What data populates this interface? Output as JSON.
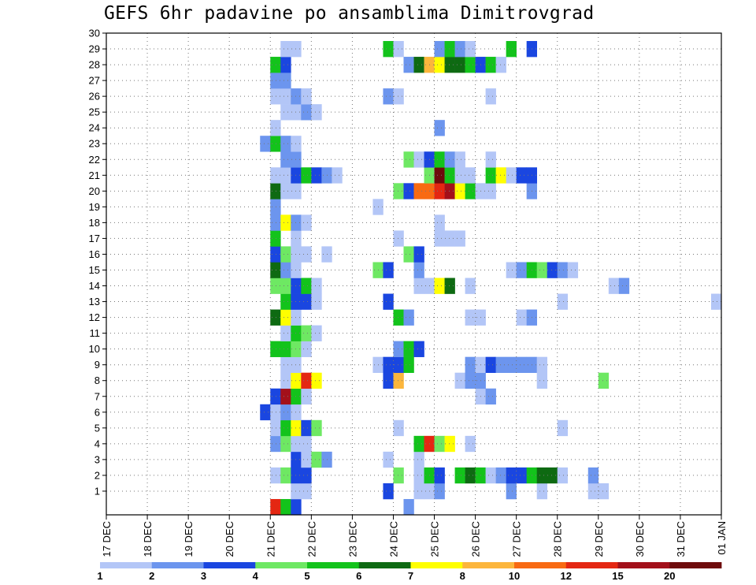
{
  "chart_data": {
    "type": "heatmap",
    "title": "GEFS 6hr padavine po ansamblima Dimitrovgrad",
    "x_tick_labels": [
      "17 DEC",
      "18 DEC",
      "19 DEC",
      "20 DEC",
      "21 DEC",
      "22 DEC",
      "23 DEC",
      "24 DEC",
      "25 DEC",
      "26 DEC",
      "27 DEC",
      "28 DEC",
      "29 DEC",
      "30 DEC",
      "31 DEC",
      "01 JAN"
    ],
    "y_tick_labels": [
      "1",
      "2",
      "3",
      "4",
      "5",
      "6",
      "7",
      "8",
      "9",
      "10",
      "11",
      "12",
      "13",
      "14",
      "15",
      "16",
      "17",
      "18",
      "19",
      "20",
      "21",
      "22",
      "23",
      "24",
      "25",
      "26",
      "27",
      "28",
      "29",
      "30"
    ],
    "x_range_days": [
      0,
      15
    ],
    "y_range": [
      0,
      30
    ],
    "grid": "dotted",
    "colorbar": {
      "labels": [
        "1",
        "2",
        "3",
        "4",
        "5",
        "6",
        "7",
        "8",
        "10",
        "12",
        "15",
        "20"
      ],
      "colors": [
        "#b3c6f7",
        "#6c95ee",
        "#1a46e0",
        "#6ee863",
        "#13c31b",
        "#0e6a12",
        "#ffff00",
        "#fcb63c",
        "#f86a12",
        "#e42712",
        "#a3101a",
        "#6e0b0c"
      ]
    },
    "cells_note": "x = day offset from 17 DEC (step 0.25 = 6h), y = ensemble member (0 = control), c = color class index 0-11",
    "cells": [
      {
        "x": 4.0,
        "y": 0,
        "c": 9
      },
      {
        "x": 4.25,
        "y": 0,
        "c": 4
      },
      {
        "x": 4.5,
        "y": 0,
        "c": 2
      },
      {
        "x": 7.25,
        "y": 0,
        "c": 1
      },
      {
        "x": 4.5,
        "y": 1,
        "c": 0
      },
      {
        "x": 4.75,
        "y": 1,
        "c": 0
      },
      {
        "x": 6.75,
        "y": 1,
        "c": 2
      },
      {
        "x": 7.5,
        "y": 1,
        "c": 0
      },
      {
        "x": 7.75,
        "y": 1,
        "c": 0
      },
      {
        "x": 8.0,
        "y": 1,
        "c": 1
      },
      {
        "x": 9.75,
        "y": 1,
        "c": 1
      },
      {
        "x": 10.5,
        "y": 1,
        "c": 0
      },
      {
        "x": 11.75,
        "y": 1,
        "c": 0
      },
      {
        "x": 12.0,
        "y": 1,
        "c": 0
      },
      {
        "x": 4.0,
        "y": 2,
        "c": 0
      },
      {
        "x": 4.25,
        "y": 2,
        "c": 3
      },
      {
        "x": 4.5,
        "y": 2,
        "c": 2
      },
      {
        "x": 4.75,
        "y": 2,
        "c": 2
      },
      {
        "x": 7.0,
        "y": 2,
        "c": 3
      },
      {
        "x": 7.5,
        "y": 2,
        "c": 0
      },
      {
        "x": 7.75,
        "y": 2,
        "c": 4
      },
      {
        "x": 8.0,
        "y": 2,
        "c": 2
      },
      {
        "x": 8.5,
        "y": 2,
        "c": 4
      },
      {
        "x": 8.75,
        "y": 2,
        "c": 5
      },
      {
        "x": 9.0,
        "y": 2,
        "c": 4
      },
      {
        "x": 9.25,
        "y": 2,
        "c": 0
      },
      {
        "x": 9.5,
        "y": 2,
        "c": 1
      },
      {
        "x": 9.75,
        "y": 2,
        "c": 2
      },
      {
        "x": 10.0,
        "y": 2,
        "c": 2
      },
      {
        "x": 10.25,
        "y": 2,
        "c": 4
      },
      {
        "x": 10.5,
        "y": 2,
        "c": 5
      },
      {
        "x": 10.75,
        "y": 2,
        "c": 5
      },
      {
        "x": 11.0,
        "y": 2,
        "c": 0
      },
      {
        "x": 11.75,
        "y": 2,
        "c": 1
      },
      {
        "x": 4.5,
        "y": 3,
        "c": 2
      },
      {
        "x": 4.75,
        "y": 3,
        "c": 0
      },
      {
        "x": 5.0,
        "y": 3,
        "c": 3
      },
      {
        "x": 5.25,
        "y": 3,
        "c": 1
      },
      {
        "x": 6.75,
        "y": 3,
        "c": 0
      },
      {
        "x": 7.5,
        "y": 3,
        "c": 0
      },
      {
        "x": 4.0,
        "y": 4,
        "c": 1
      },
      {
        "x": 4.25,
        "y": 4,
        "c": 3
      },
      {
        "x": 4.5,
        "y": 4,
        "c": 0
      },
      {
        "x": 4.75,
        "y": 4,
        "c": 0
      },
      {
        "x": 7.5,
        "y": 4,
        "c": 4
      },
      {
        "x": 7.75,
        "y": 4,
        "c": 9
      },
      {
        "x": 8.0,
        "y": 4,
        "c": 3
      },
      {
        "x": 8.25,
        "y": 4,
        "c": 6
      },
      {
        "x": 8.75,
        "y": 4,
        "c": 0
      },
      {
        "x": 4.0,
        "y": 5,
        "c": 0
      },
      {
        "x": 4.25,
        "y": 5,
        "c": 4
      },
      {
        "x": 4.5,
        "y": 5,
        "c": 6
      },
      {
        "x": 4.75,
        "y": 5,
        "c": 2
      },
      {
        "x": 5.0,
        "y": 5,
        "c": 3
      },
      {
        "x": 7.0,
        "y": 5,
        "c": 0
      },
      {
        "x": 11.0,
        "y": 5,
        "c": 0
      },
      {
        "x": 3.75,
        "y": 6,
        "c": 2
      },
      {
        "x": 4.0,
        "y": 6,
        "c": 0
      },
      {
        "x": 4.25,
        "y": 6,
        "c": 1
      },
      {
        "x": 4.5,
        "y": 6,
        "c": 0
      },
      {
        "x": 4.0,
        "y": 7,
        "c": 2
      },
      {
        "x": 4.25,
        "y": 7,
        "c": 10
      },
      {
        "x": 4.5,
        "y": 7,
        "c": 4
      },
      {
        "x": 4.75,
        "y": 7,
        "c": 0
      },
      {
        "x": 9.0,
        "y": 7,
        "c": 0
      },
      {
        "x": 9.25,
        "y": 7,
        "c": 1
      },
      {
        "x": 4.25,
        "y": 8,
        "c": 0
      },
      {
        "x": 4.5,
        "y": 8,
        "c": 6
      },
      {
        "x": 4.75,
        "y": 8,
        "c": 9
      },
      {
        "x": 5.0,
        "y": 8,
        "c": 6
      },
      {
        "x": 6.75,
        "y": 8,
        "c": 2
      },
      {
        "x": 7.0,
        "y": 8,
        "c": 7
      },
      {
        "x": 8.5,
        "y": 8,
        "c": 0
      },
      {
        "x": 8.75,
        "y": 8,
        "c": 1
      },
      {
        "x": 9.0,
        "y": 8,
        "c": 1
      },
      {
        "x": 10.5,
        "y": 8,
        "c": 0
      },
      {
        "x": 12.0,
        "y": 8,
        "c": 3
      },
      {
        "x": 4.25,
        "y": 9,
        "c": 0
      },
      {
        "x": 4.5,
        "y": 9,
        "c": 0
      },
      {
        "x": 6.5,
        "y": 9,
        "c": 0
      },
      {
        "x": 6.75,
        "y": 9,
        "c": 2
      },
      {
        "x": 7.0,
        "y": 9,
        "c": 2
      },
      {
        "x": 7.25,
        "y": 9,
        "c": 4
      },
      {
        "x": 8.75,
        "y": 9,
        "c": 1
      },
      {
        "x": 9.0,
        "y": 9,
        "c": 0
      },
      {
        "x": 9.25,
        "y": 9,
        "c": 2
      },
      {
        "x": 9.5,
        "y": 9,
        "c": 1
      },
      {
        "x": 9.75,
        "y": 9,
        "c": 1
      },
      {
        "x": 10.0,
        "y": 9,
        "c": 1
      },
      {
        "x": 10.25,
        "y": 9,
        "c": 1
      },
      {
        "x": 10.5,
        "y": 9,
        "c": 0
      },
      {
        "x": 4.0,
        "y": 10,
        "c": 4
      },
      {
        "x": 4.25,
        "y": 10,
        "c": 4
      },
      {
        "x": 4.5,
        "y": 10,
        "c": 3
      },
      {
        "x": 4.75,
        "y": 10,
        "c": 0
      },
      {
        "x": 7.0,
        "y": 10,
        "c": 1
      },
      {
        "x": 7.25,
        "y": 10,
        "c": 4
      },
      {
        "x": 7.5,
        "y": 10,
        "c": 2
      },
      {
        "x": 4.25,
        "y": 11,
        "c": 0
      },
      {
        "x": 4.5,
        "y": 11,
        "c": 4
      },
      {
        "x": 4.75,
        "y": 11,
        "c": 3
      },
      {
        "x": 5.0,
        "y": 11,
        "c": 0
      },
      {
        "x": 4.0,
        "y": 12,
        "c": 5
      },
      {
        "x": 4.25,
        "y": 12,
        "c": 6
      },
      {
        "x": 4.5,
        "y": 12,
        "c": 0
      },
      {
        "x": 7.0,
        "y": 12,
        "c": 4
      },
      {
        "x": 7.25,
        "y": 12,
        "c": 1
      },
      {
        "x": 8.75,
        "y": 12,
        "c": 0
      },
      {
        "x": 9.0,
        "y": 12,
        "c": 0
      },
      {
        "x": 10.0,
        "y": 12,
        "c": 0
      },
      {
        "x": 10.25,
        "y": 12,
        "c": 1
      },
      {
        "x": 4.25,
        "y": 13,
        "c": 4
      },
      {
        "x": 4.5,
        "y": 13,
        "c": 2
      },
      {
        "x": 4.75,
        "y": 13,
        "c": 2
      },
      {
        "x": 5.0,
        "y": 13,
        "c": 0
      },
      {
        "x": 6.75,
        "y": 13,
        "c": 2
      },
      {
        "x": 11.0,
        "y": 13,
        "c": 0
      },
      {
        "x": 14.75,
        "y": 13,
        "c": 0
      },
      {
        "x": 4.0,
        "y": 14,
        "c": 3
      },
      {
        "x": 4.25,
        "y": 14,
        "c": 3
      },
      {
        "x": 4.5,
        "y": 14,
        "c": 2
      },
      {
        "x": 4.75,
        "y": 14,
        "c": 4
      },
      {
        "x": 5.0,
        "y": 14,
        "c": 0
      },
      {
        "x": 7.5,
        "y": 14,
        "c": 0
      },
      {
        "x": 7.75,
        "y": 14,
        "c": 0
      },
      {
        "x": 8.0,
        "y": 14,
        "c": 6
      },
      {
        "x": 8.25,
        "y": 14,
        "c": 5
      },
      {
        "x": 8.75,
        "y": 14,
        "c": 0
      },
      {
        "x": 12.25,
        "y": 14,
        "c": 0
      },
      {
        "x": 12.5,
        "y": 14,
        "c": 1
      },
      {
        "x": 4.0,
        "y": 15,
        "c": 5
      },
      {
        "x": 4.25,
        "y": 15,
        "c": 1
      },
      {
        "x": 4.5,
        "y": 15,
        "c": 0
      },
      {
        "x": 6.5,
        "y": 15,
        "c": 3
      },
      {
        "x": 6.75,
        "y": 15,
        "c": 2
      },
      {
        "x": 7.5,
        "y": 15,
        "c": 1
      },
      {
        "x": 9.75,
        "y": 15,
        "c": 0
      },
      {
        "x": 10.0,
        "y": 15,
        "c": 1
      },
      {
        "x": 10.25,
        "y": 15,
        "c": 4
      },
      {
        "x": 10.5,
        "y": 15,
        "c": 3
      },
      {
        "x": 10.75,
        "y": 15,
        "c": 2
      },
      {
        "x": 11.0,
        "y": 15,
        "c": 1
      },
      {
        "x": 11.25,
        "y": 15,
        "c": 0
      },
      {
        "x": 4.0,
        "y": 16,
        "c": 2
      },
      {
        "x": 4.25,
        "y": 16,
        "c": 3
      },
      {
        "x": 4.5,
        "y": 16,
        "c": 0
      },
      {
        "x": 4.75,
        "y": 16,
        "c": 0
      },
      {
        "x": 5.25,
        "y": 16,
        "c": 0
      },
      {
        "x": 7.25,
        "y": 16,
        "c": 3
      },
      {
        "x": 7.5,
        "y": 16,
        "c": 2
      },
      {
        "x": 4.0,
        "y": 17,
        "c": 4
      },
      {
        "x": 4.5,
        "y": 17,
        "c": 0
      },
      {
        "x": 7.0,
        "y": 17,
        "c": 0
      },
      {
        "x": 8.0,
        "y": 17,
        "c": 0
      },
      {
        "x": 8.25,
        "y": 17,
        "c": 0
      },
      {
        "x": 8.5,
        "y": 17,
        "c": 0
      },
      {
        "x": 4.0,
        "y": 18,
        "c": 1
      },
      {
        "x": 4.25,
        "y": 18,
        "c": 6
      },
      {
        "x": 4.5,
        "y": 18,
        "c": 1
      },
      {
        "x": 4.75,
        "y": 18,
        "c": 0
      },
      {
        "x": 8.0,
        "y": 18,
        "c": 0
      },
      {
        "x": 4.0,
        "y": 19,
        "c": 1
      },
      {
        "x": 6.5,
        "y": 19,
        "c": 0
      },
      {
        "x": 4.0,
        "y": 20,
        "c": 5
      },
      {
        "x": 4.25,
        "y": 20,
        "c": 0
      },
      {
        "x": 4.5,
        "y": 20,
        "c": 0
      },
      {
        "x": 7.0,
        "y": 20,
        "c": 3
      },
      {
        "x": 7.25,
        "y": 20,
        "c": 2
      },
      {
        "x": 7.5,
        "y": 20,
        "c": 8
      },
      {
        "x": 7.75,
        "y": 20,
        "c": 8
      },
      {
        "x": 8.0,
        "y": 20,
        "c": 9
      },
      {
        "x": 8.25,
        "y": 20,
        "c": 10
      },
      {
        "x": 8.5,
        "y": 20,
        "c": 6
      },
      {
        "x": 8.75,
        "y": 20,
        "c": 4
      },
      {
        "x": 9.0,
        "y": 20,
        "c": 0
      },
      {
        "x": 9.25,
        "y": 20,
        "c": 0
      },
      {
        "x": 10.25,
        "y": 20,
        "c": 1
      },
      {
        "x": 4.0,
        "y": 21,
        "c": 0
      },
      {
        "x": 4.25,
        "y": 21,
        "c": 0
      },
      {
        "x": 4.5,
        "y": 21,
        "c": 2
      },
      {
        "x": 4.75,
        "y": 21,
        "c": 4
      },
      {
        "x": 5.0,
        "y": 21,
        "c": 2
      },
      {
        "x": 5.25,
        "y": 21,
        "c": 1
      },
      {
        "x": 5.5,
        "y": 21,
        "c": 0
      },
      {
        "x": 7.75,
        "y": 21,
        "c": 3
      },
      {
        "x": 8.0,
        "y": 21,
        "c": 11
      },
      {
        "x": 8.25,
        "y": 21,
        "c": 4
      },
      {
        "x": 8.5,
        "y": 21,
        "c": 0
      },
      {
        "x": 8.75,
        "y": 21,
        "c": 0
      },
      {
        "x": 9.25,
        "y": 21,
        "c": 4
      },
      {
        "x": 9.5,
        "y": 21,
        "c": 6
      },
      {
        "x": 9.75,
        "y": 21,
        "c": 0
      },
      {
        "x": 10.0,
        "y": 21,
        "c": 2
      },
      {
        "x": 10.25,
        "y": 21,
        "c": 2
      },
      {
        "x": 4.25,
        "y": 22,
        "c": 1
      },
      {
        "x": 4.5,
        "y": 22,
        "c": 1
      },
      {
        "x": 7.25,
        "y": 22,
        "c": 3
      },
      {
        "x": 7.5,
        "y": 22,
        "c": 0
      },
      {
        "x": 7.75,
        "y": 22,
        "c": 2
      },
      {
        "x": 8.0,
        "y": 22,
        "c": 4
      },
      {
        "x": 8.25,
        "y": 22,
        "c": 1
      },
      {
        "x": 8.5,
        "y": 22,
        "c": 0
      },
      {
        "x": 9.25,
        "y": 22,
        "c": 0
      },
      {
        "x": 3.75,
        "y": 23,
        "c": 1
      },
      {
        "x": 4.0,
        "y": 23,
        "c": 4
      },
      {
        "x": 4.25,
        "y": 23,
        "c": 1
      },
      {
        "x": 4.5,
        "y": 23,
        "c": 0
      },
      {
        "x": 4.0,
        "y": 24,
        "c": 0
      },
      {
        "x": 8.0,
        "y": 24,
        "c": 1
      },
      {
        "x": 4.25,
        "y": 25,
        "c": 0
      },
      {
        "x": 4.5,
        "y": 25,
        "c": 0
      },
      {
        "x": 4.75,
        "y": 25,
        "c": 1
      },
      {
        "x": 5.0,
        "y": 25,
        "c": 0
      },
      {
        "x": 4.0,
        "y": 26,
        "c": 0
      },
      {
        "x": 4.25,
        "y": 26,
        "c": 0
      },
      {
        "x": 4.5,
        "y": 26,
        "c": 1
      },
      {
        "x": 4.75,
        "y": 26,
        "c": 0
      },
      {
        "x": 6.75,
        "y": 26,
        "c": 1
      },
      {
        "x": 7.0,
        "y": 26,
        "c": 0
      },
      {
        "x": 9.25,
        "y": 26,
        "c": 0
      },
      {
        "x": 4.0,
        "y": 27,
        "c": 1
      },
      {
        "x": 4.25,
        "y": 27,
        "c": 1
      },
      {
        "x": 4.0,
        "y": 28,
        "c": 4
      },
      {
        "x": 4.25,
        "y": 28,
        "c": 2
      },
      {
        "x": 7.25,
        "y": 28,
        "c": 1
      },
      {
        "x": 7.5,
        "y": 28,
        "c": 5
      },
      {
        "x": 7.75,
        "y": 28,
        "c": 7
      },
      {
        "x": 8.0,
        "y": 28,
        "c": 6
      },
      {
        "x": 8.25,
        "y": 28,
        "c": 5
      },
      {
        "x": 8.5,
        "y": 28,
        "c": 5
      },
      {
        "x": 8.75,
        "y": 28,
        "c": 4
      },
      {
        "x": 9.0,
        "y": 28,
        "c": 2
      },
      {
        "x": 9.25,
        "y": 28,
        "c": 4
      },
      {
        "x": 9.5,
        "y": 28,
        "c": 0
      },
      {
        "x": 4.25,
        "y": 29,
        "c": 0
      },
      {
        "x": 4.5,
        "y": 29,
        "c": 0
      },
      {
        "x": 6.75,
        "y": 29,
        "c": 4
      },
      {
        "x": 7.0,
        "y": 29,
        "c": 0
      },
      {
        "x": 8.0,
        "y": 29,
        "c": 1
      },
      {
        "x": 8.25,
        "y": 29,
        "c": 4
      },
      {
        "x": 8.5,
        "y": 29,
        "c": 1
      },
      {
        "x": 8.75,
        "y": 29,
        "c": 0
      },
      {
        "x": 9.75,
        "y": 29,
        "c": 4
      },
      {
        "x": 10.25,
        "y": 29,
        "c": 2
      }
    ]
  }
}
